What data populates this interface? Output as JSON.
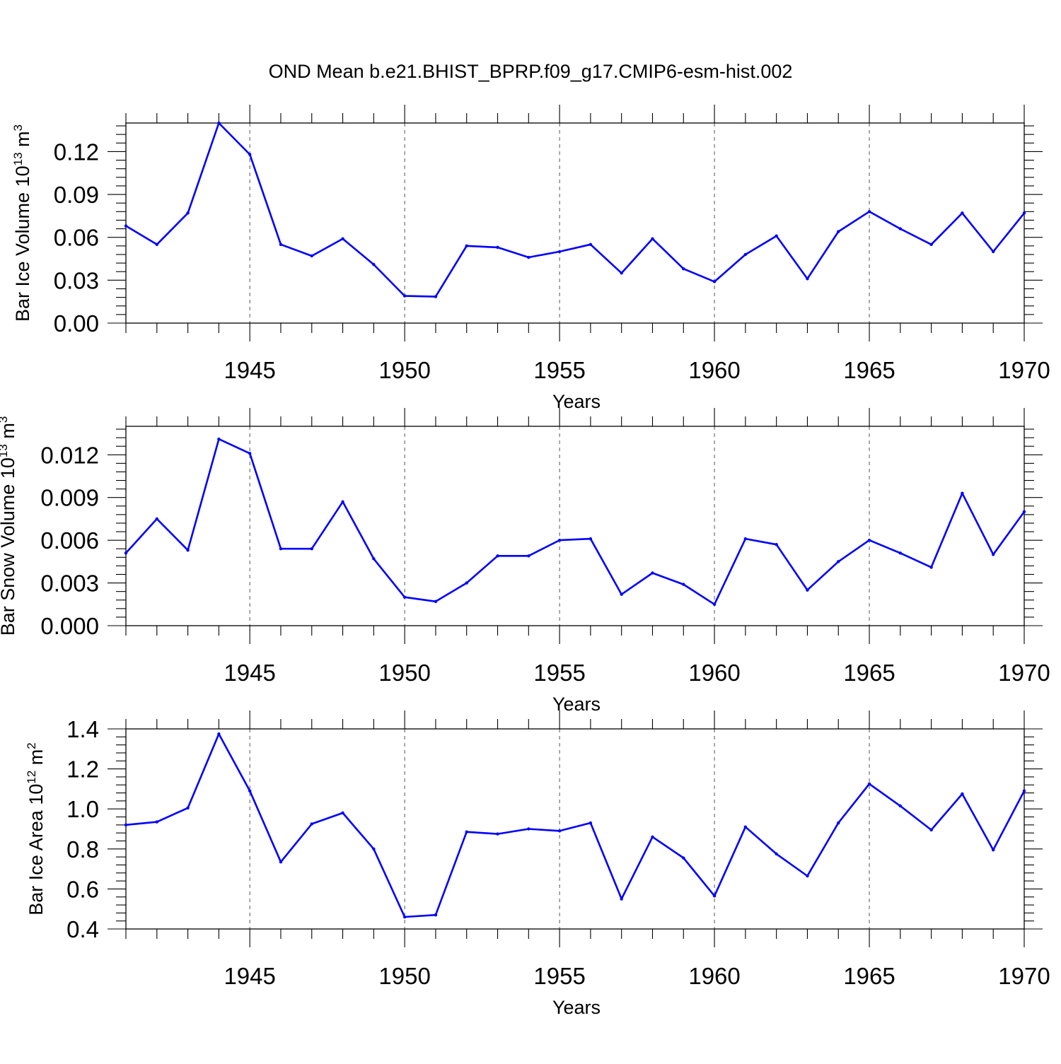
{
  "title": "OND Mean b.e21.BHIST_BPRP.f09_g17.CMIP6-esm-hist.002",
  "colors": {
    "line": "#0000ff",
    "grid": "#555555"
  },
  "chart_data": [
    {
      "type": "line",
      "series_name": "Bar Ice Volume",
      "ylabel": "Bar Ice Volume",
      "ylabel_base": "10",
      "ylabel_exp": "13",
      "ylabel_unit_base": "m",
      "ylabel_unit_exp": "3",
      "xlabel": "Years",
      "xlim": [
        1941,
        1970
      ],
      "ylim": [
        0,
        0.14
      ],
      "yticks": [
        0.0,
        0.03,
        0.06,
        0.09,
        0.12
      ],
      "ytick_labels": [
        "0.00",
        "0.03",
        "0.06",
        "0.09",
        "0.12"
      ],
      "xticks": [
        1945,
        1950,
        1955,
        1960,
        1965,
        1970
      ],
      "xtick_labels": [
        "1945",
        "1950",
        "1955",
        "1960",
        "1965",
        "1970"
      ],
      "grid": "x-dashed",
      "x": [
        1941,
        1942,
        1943,
        1944,
        1945,
        1946,
        1947,
        1948,
        1949,
        1950,
        1951,
        1952,
        1953,
        1954,
        1955,
        1956,
        1957,
        1958,
        1959,
        1960,
        1961,
        1962,
        1963,
        1964,
        1965,
        1966,
        1967,
        1968,
        1969,
        1970
      ],
      "values": [
        0.068,
        0.055,
        0.077,
        0.14,
        0.118,
        0.055,
        0.047,
        0.059,
        0.041,
        0.019,
        0.0185,
        0.054,
        0.053,
        0.046,
        0.05,
        0.055,
        0.035,
        0.059,
        0.038,
        0.029,
        0.048,
        0.061,
        0.031,
        0.064,
        0.078,
        0.066,
        0.055,
        0.077,
        0.05,
        0.077
      ]
    },
    {
      "type": "line",
      "series_name": "Bar Snow Volume",
      "ylabel": "Bar Snow Volume",
      "ylabel_base": "10",
      "ylabel_exp": "13",
      "ylabel_unit_base": "m",
      "ylabel_unit_exp": "3",
      "xlabel": "Years",
      "xlim": [
        1941,
        1970
      ],
      "ylim": [
        0,
        0.014
      ],
      "yticks": [
        0.0,
        0.003,
        0.006,
        0.009,
        0.012
      ],
      "ytick_labels": [
        "0.000",
        "0.003",
        "0.006",
        "0.009",
        "0.012"
      ],
      "xticks": [
        1945,
        1950,
        1955,
        1960,
        1965,
        1970
      ],
      "xtick_labels": [
        "1945",
        "1950",
        "1955",
        "1960",
        "1965",
        "1970"
      ],
      "grid": "x-dashed",
      "x": [
        1941,
        1942,
        1943,
        1944,
        1945,
        1946,
        1947,
        1948,
        1949,
        1950,
        1951,
        1952,
        1953,
        1954,
        1955,
        1956,
        1957,
        1958,
        1959,
        1960,
        1961,
        1962,
        1963,
        1964,
        1965,
        1966,
        1967,
        1968,
        1969,
        1970
      ],
      "values": [
        0.0051,
        0.0075,
        0.0053,
        0.0131,
        0.0121,
        0.0054,
        0.0054,
        0.0087,
        0.0047,
        0.002,
        0.0017,
        0.003,
        0.0049,
        0.0049,
        0.006,
        0.0061,
        0.0022,
        0.0037,
        0.0029,
        0.0015,
        0.0061,
        0.0057,
        0.0025,
        0.0045,
        0.006,
        0.0051,
        0.0041,
        0.0093,
        0.005,
        0.008
      ]
    },
    {
      "type": "line",
      "series_name": "Bar Ice Area",
      "ylabel": "Bar Ice Area",
      "ylabel_base": "10",
      "ylabel_exp": "12",
      "ylabel_unit_base": "m",
      "ylabel_unit_exp": "2",
      "xlabel": "Years",
      "xlim": [
        1941,
        1970
      ],
      "ylim": [
        0.4,
        1.4
      ],
      "yticks": [
        0.4,
        0.6,
        0.8,
        1.0,
        1.2,
        1.4
      ],
      "ytick_labels": [
        "0.4",
        "0.6",
        "0.8",
        "1.0",
        "1.2",
        "1.4"
      ],
      "xticks": [
        1945,
        1950,
        1955,
        1960,
        1965,
        1970
      ],
      "xtick_labels": [
        "1945",
        "1950",
        "1955",
        "1960",
        "1965",
        "1970"
      ],
      "grid": "x-dashed",
      "x": [
        1941,
        1942,
        1943,
        1944,
        1945,
        1946,
        1947,
        1948,
        1949,
        1950,
        1951,
        1952,
        1953,
        1954,
        1955,
        1956,
        1957,
        1958,
        1959,
        1960,
        1961,
        1962,
        1963,
        1964,
        1965,
        1966,
        1967,
        1968,
        1969,
        1970
      ],
      "values": [
        0.92,
        0.935,
        1.005,
        1.375,
        1.09,
        0.735,
        0.925,
        0.98,
        0.8,
        0.46,
        0.47,
        0.885,
        0.875,
        0.9,
        0.89,
        0.93,
        0.55,
        0.86,
        0.755,
        0.565,
        0.91,
        0.775,
        0.665,
        0.93,
        1.125,
        1.015,
        0.895,
        1.075,
        0.795,
        1.09
      ]
    }
  ]
}
